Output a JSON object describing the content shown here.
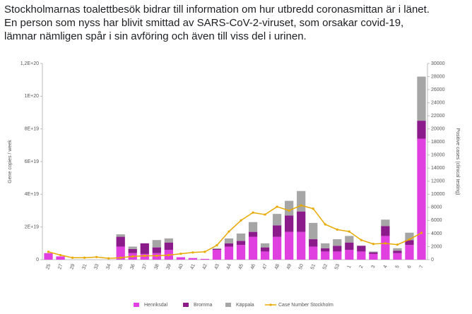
{
  "post": {
    "lines": [
      "Stockholmarnas toalettbesök bidrar till information om hur utbredd coronasmittan är i länet.",
      "En person som nyss har blivit smittad av SARS-CoV-2-viruset, som orsakar covid-19,",
      "lämnar nämligen spår i sin avföring och även till viss del i urinen."
    ]
  },
  "chart_data": {
    "type": "bar",
    "stacked": true,
    "ylabel": "Gene copies / week",
    "y2label": "Positive cases (clinical testing)",
    "categories": [
      "25",
      "27",
      "29",
      "31",
      "33",
      "34",
      "35",
      "36",
      "37",
      "38",
      "39",
      "40",
      "41",
      "42",
      "43",
      "44",
      "45",
      "46",
      "47",
      "48",
      "49",
      "50",
      "51",
      "52",
      "53",
      "1",
      "2",
      "3",
      "4",
      "5",
      "6",
      "7"
    ],
    "series": [
      {
        "name": "Henriksdal",
        "color": "#e040e0",
        "values": [
          4e+18,
          2e+18,
          0,
          0,
          0,
          0,
          8e+18,
          4e+18,
          3.5e+18,
          4e+18,
          6e+18,
          1.5e+18,
          1e+18,
          5e+17,
          6e+18,
          8e+18,
          9e+18,
          1.4e+19,
          5e+18,
          1.4e+19,
          1.7e+19,
          1.7e+19,
          8e+18,
          5e+18,
          5e+18,
          6e+18,
          5e+18,
          3.5e+18,
          1.45e+19,
          4e+18,
          9e+18,
          7.4e+19
        ]
      },
      {
        "name": "Bromma",
        "color": "#8b1a8b",
        "values": [
          0,
          0,
          0,
          0,
          0,
          0,
          6e+18,
          2.5e+18,
          6.5e+18,
          3.5e+18,
          4.5e+18,
          0,
          0,
          0,
          5e+17,
          2e+18,
          2.5e+18,
          3e+18,
          2.5e+18,
          7e+18,
          1e+19,
          1.25e+19,
          4.5e+18,
          2e+18,
          3.5e+18,
          4.5e+18,
          3.5e+18,
          1e+18,
          6e+18,
          1.5e+18,
          3e+18,
          1.1e+19
        ]
      },
      {
        "name": "Käppala",
        "color": "#a6a6a6",
        "values": [
          0,
          0,
          0,
          0,
          0,
          0,
          1.5e+18,
          1.5e+18,
          0,
          4.5e+18,
          2.5e+18,
          0,
          0,
          0,
          5e+17,
          3e+18,
          4.5e+18,
          6e+18,
          2.5e+18,
          7e+18,
          9e+18,
          1.25e+19,
          1e+19,
          3e+18,
          4e+18,
          4e+18,
          0,
          5e+17,
          4e+18,
          1.5e+18,
          4.5e+18,
          2.7e+19
        ]
      },
      {
        "name": "Case Number Stockholm",
        "color": "#e8a900",
        "type": "line",
        "axis": "y2",
        "values": [
          1200,
          700,
          300,
          300,
          400,
          200,
          300,
          500,
          600,
          600,
          700,
          900,
          1100,
          1200,
          2200,
          4300,
          6000,
          7200,
          6900,
          8100,
          7500,
          8300,
          7800,
          5400,
          4600,
          4300,
          3000,
          2400,
          2500,
          2300,
          3100,
          4100
        ]
      }
    ],
    "ylim": [
      0,
      1.2e+20
    ],
    "yticks": [
      0,
      {
        "value": 2e+19,
        "label": "2E+19"
      },
      {
        "value": 4e+19,
        "label": "4E+19"
      },
      {
        "value": 6e+19,
        "label": "6E+19"
      },
      {
        "value": 8e+19,
        "label": "8E+19"
      },
      {
        "value": 1e+20,
        "label": "1E+20"
      },
      {
        "value": 1.2e+20,
        "label": "1,2E+20"
      }
    ],
    "y2lim": [
      0,
      30000
    ],
    "y2ticks": [
      0,
      2000,
      4000,
      6000,
      8000,
      10000,
      12000,
      14000,
      16000,
      18000,
      20000,
      22000,
      24000,
      26000,
      28000,
      30000
    ]
  }
}
